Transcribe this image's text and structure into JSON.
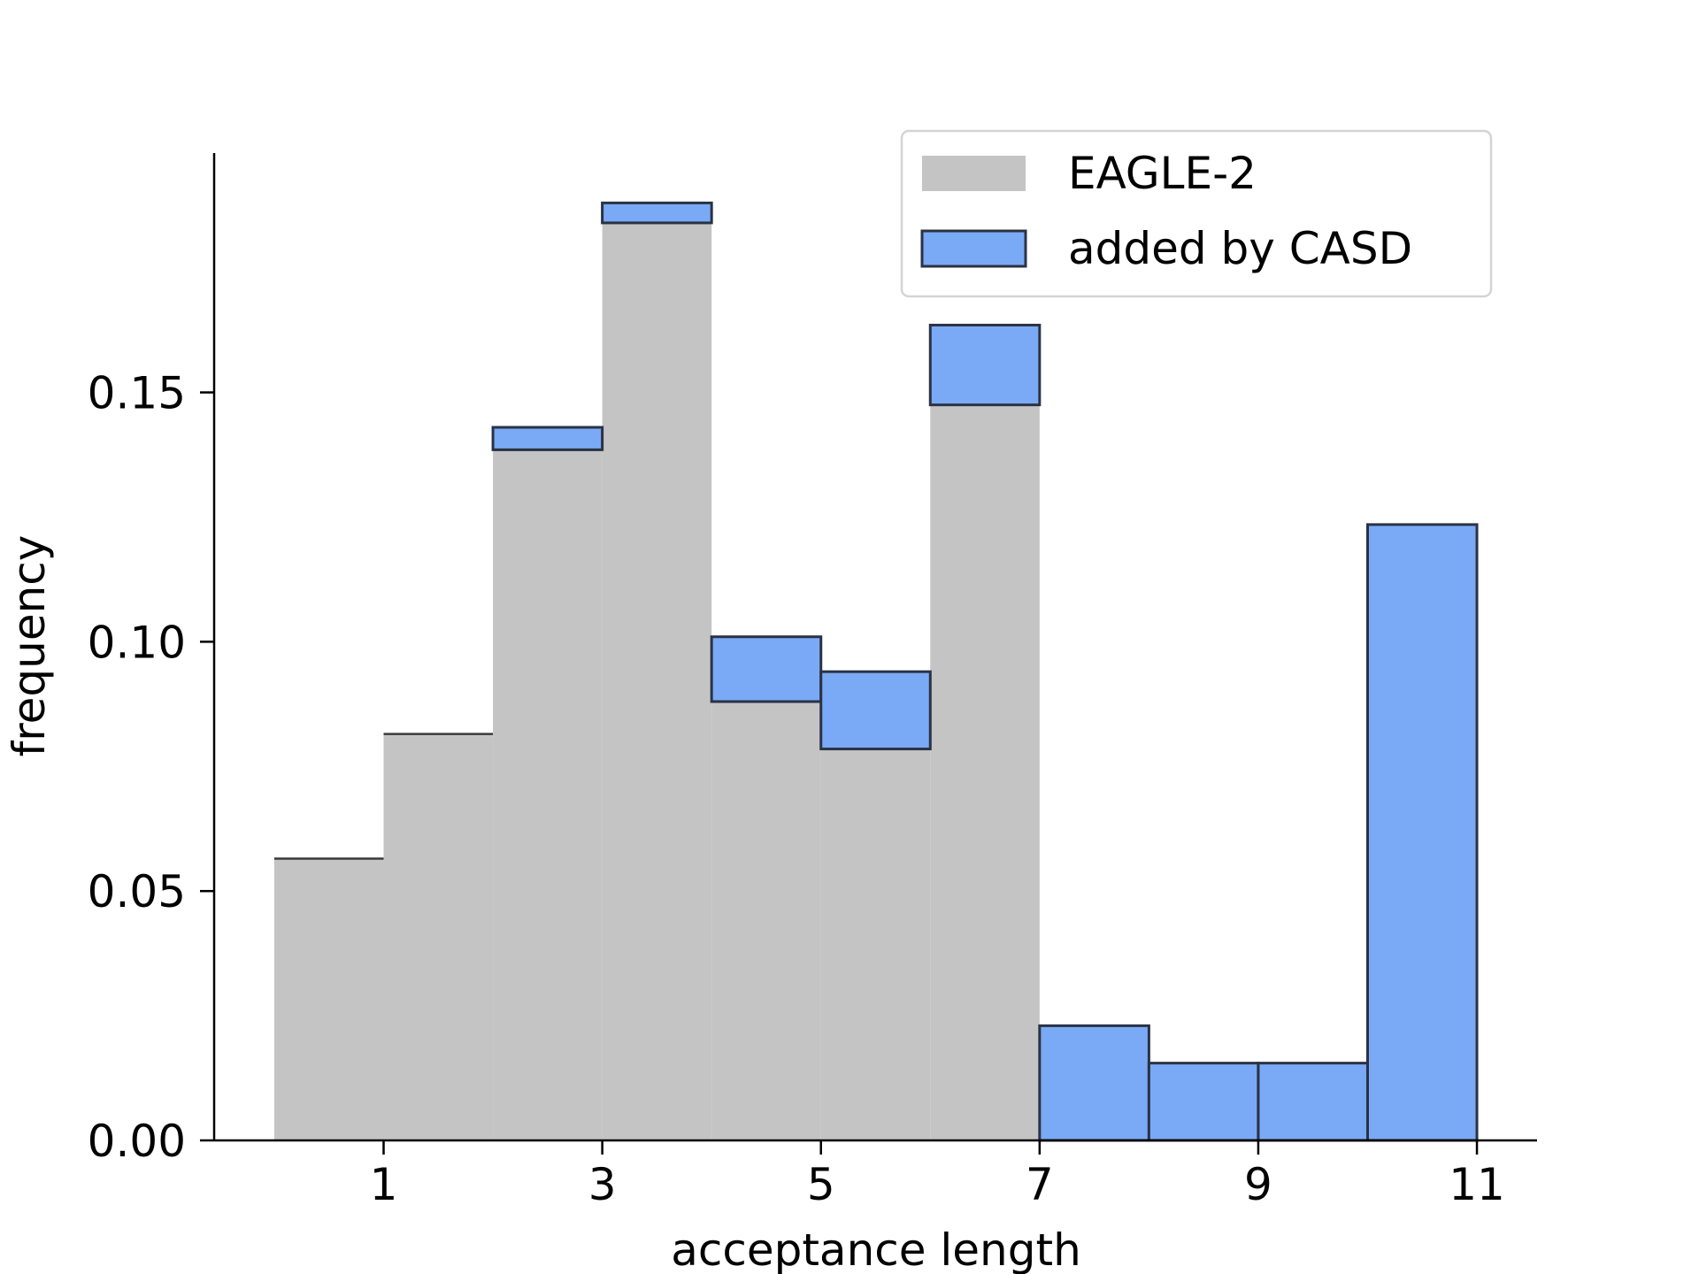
{
  "chart_data": {
    "type": "bar",
    "bin_edges": [
      0,
      1,
      2,
      3,
      4,
      5,
      6,
      7,
      8,
      9,
      10,
      11
    ],
    "series": [
      {
        "name": "EAGLE-2",
        "color": "#c4c4c4",
        "values": [
          0.0565,
          0.0815,
          0.1385,
          0.184,
          0.088,
          0.0785,
          0.1475,
          0,
          0,
          0,
          0
        ]
      },
      {
        "name": "added by CASD",
        "color": "#7aaaf5",
        "edge_color": "#2a3244",
        "values": [
          0,
          0,
          0.0045,
          0.004,
          0.013,
          0.0155,
          0.016,
          0.023,
          0.0155,
          0.0155,
          0.1235
        ]
      }
    ],
    "xlabel": "acceptance length",
    "ylabel": "frequency",
    "xlim": [
      -0.55,
      11.55
    ],
    "ylim": [
      0,
      0.198
    ],
    "x_ticks": [
      1,
      3,
      5,
      7,
      9,
      11
    ],
    "x_tick_labels": [
      "1",
      "3",
      "5",
      "7",
      "9",
      "11"
    ],
    "y_ticks": [
      0,
      0.05,
      0.1,
      0.15
    ],
    "y_tick_labels": [
      "0.00",
      "0.05",
      "0.10",
      "0.15"
    ],
    "legend": "top-right",
    "grid": false
  }
}
